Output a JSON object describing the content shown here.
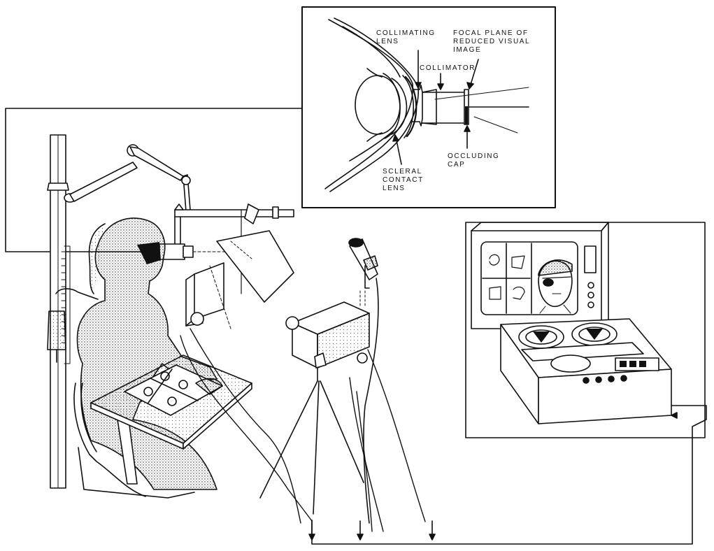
{
  "inset": {
    "labels": {
      "collimating_lens": [
        "COLLIMATING",
        "LENS"
      ],
      "focal_plane": [
        "FOCAL PLANE OF",
        "REDUCED VISUAL",
        "IMAGE"
      ],
      "collimator": [
        "COLLIMATOR"
      ],
      "occluding_cap": [
        "OCCLUDING",
        "CAP"
      ],
      "scleral_contact_lens": [
        "SCLERAL",
        "CONTACT",
        "LENS"
      ]
    }
  },
  "colors": {
    "ink": "#111111",
    "paper": "#ffffff",
    "stipple": "#9a9a9a"
  }
}
